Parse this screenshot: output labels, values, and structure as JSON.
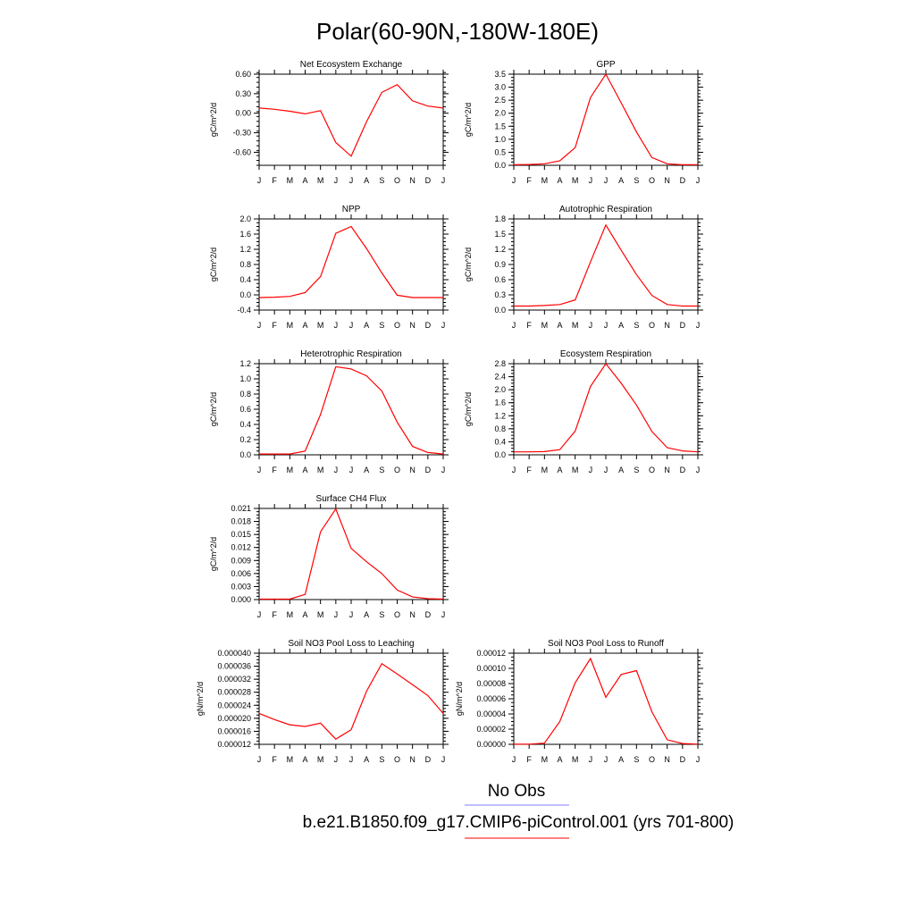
{
  "title": "Polar(60-90N,-180W-180E)",
  "months": [
    "J",
    "F",
    "M",
    "A",
    "M",
    "J",
    "J",
    "A",
    "S",
    "O",
    "N",
    "D",
    "J"
  ],
  "legend": [
    {
      "label": "No Obs",
      "color": "#8080ff"
    },
    {
      "label": "b.e21.B1850.f09_g17.CMIP6-piControl.001 (yrs 701-800)",
      "color": "#ff0000"
    }
  ],
  "chart_data": [
    {
      "type": "line",
      "title": "Net Ecosystem Exchange",
      "ylabel": "gC/m^2/d",
      "ylim": [
        -0.8,
        0.6
      ],
      "yticks": [
        -0.6,
        -0.3,
        0.0,
        0.3,
        0.6
      ],
      "ytick_labels": [
        "-0.60",
        "-0.30",
        "0.00",
        "0.30",
        "0.60"
      ],
      "yminor": 0.075,
      "values": [
        0.08,
        0.06,
        0.03,
        -0.01,
        0.04,
        -0.45,
        -0.66,
        -0.13,
        0.32,
        0.44,
        0.19,
        0.11,
        0.08
      ]
    },
    {
      "type": "line",
      "title": "GPP",
      "ylabel": "gC/m^2/d",
      "ylim": [
        0,
        3.5
      ],
      "yticks": [
        0,
        0.5,
        1.0,
        1.5,
        2.0,
        2.5,
        3.0,
        3.5
      ],
      "ytick_labels": [
        "0.0",
        "0.5",
        "1.0",
        "1.5",
        "2.0",
        "2.5",
        "3.0",
        "3.5"
      ],
      "yminor": 0.125,
      "values": [
        0.02,
        0.03,
        0.06,
        0.17,
        0.68,
        2.6,
        3.5,
        2.4,
        1.28,
        0.3,
        0.06,
        0.02,
        0.02
      ]
    },
    {
      "type": "line",
      "title": "NPP",
      "ylabel": "gC/m^2/d",
      "ylim": [
        -0.4,
        2.0
      ],
      "yticks": [
        -0.4,
        0.0,
        0.4,
        0.8,
        1.2,
        1.6,
        2.0
      ],
      "ytick_labels": [
        "-0.4",
        "0.0",
        "0.4",
        "0.8",
        "1.2",
        "1.6",
        "2.0"
      ],
      "yminor": 0.1,
      "values": [
        -0.07,
        -0.06,
        -0.04,
        0.06,
        0.48,
        1.62,
        1.8,
        1.22,
        0.58,
        -0.01,
        -0.07,
        -0.07,
        -0.07
      ]
    },
    {
      "type": "line",
      "title": "Autotrophic Respiration",
      "ylabel": "gC/m^2/d",
      "ylim": [
        0,
        1.8
      ],
      "yticks": [
        0,
        0.3,
        0.6,
        0.9,
        1.2,
        1.5,
        1.8
      ],
      "ytick_labels": [
        "0.0",
        "0.3",
        "0.6",
        "0.9",
        "1.2",
        "1.5",
        "1.8"
      ],
      "yminor": 0.075,
      "values": [
        0.08,
        0.08,
        0.09,
        0.11,
        0.2,
        0.95,
        1.68,
        1.18,
        0.7,
        0.29,
        0.11,
        0.08,
        0.08
      ]
    },
    {
      "type": "line",
      "title": "Heterotrophic Respiration",
      "ylabel": "gC/m^2/d",
      "ylim": [
        0,
        1.2
      ],
      "yticks": [
        0,
        0.2,
        0.4,
        0.6,
        0.8,
        1.0,
        1.2
      ],
      "ytick_labels": [
        "0.0",
        "0.2",
        "0.4",
        "0.6",
        "0.8",
        "1.0",
        "1.2"
      ],
      "yminor": 0.05,
      "values": [
        0.01,
        0.01,
        0.01,
        0.05,
        0.53,
        1.16,
        1.13,
        1.04,
        0.84,
        0.43,
        0.11,
        0.03,
        0.01
      ]
    },
    {
      "type": "line",
      "title": "Ecosystem Respiration",
      "ylabel": "gC/m^2/d",
      "ylim": [
        0,
        2.8
      ],
      "yticks": [
        0,
        0.4,
        0.8,
        1.2,
        1.6,
        2.0,
        2.4,
        2.8
      ],
      "ytick_labels": [
        "0.0",
        "0.4",
        "0.8",
        "1.2",
        "1.6",
        "2.0",
        "2.4",
        "2.8"
      ],
      "yminor": 0.1,
      "values": [
        0.09,
        0.09,
        0.1,
        0.16,
        0.73,
        2.1,
        2.8,
        2.2,
        1.53,
        0.72,
        0.22,
        0.12,
        0.09
      ]
    },
    {
      "type": "line",
      "title": "Surface CH4 Flux",
      "ylabel": "gC/m^2/d",
      "ylim": [
        0,
        0.021
      ],
      "yticks": [
        0,
        0.003,
        0.006,
        0.009,
        0.012,
        0.015,
        0.018,
        0.021
      ],
      "ytick_labels": [
        "0.000",
        "0.003",
        "0.006",
        "0.009",
        "0.012",
        "0.015",
        "0.018",
        "0.021"
      ],
      "yminor": 0.00075,
      "values": [
        0.0001,
        0.0001,
        0.0001,
        0.0012,
        0.0156,
        0.0209,
        0.0118,
        0.0087,
        0.006,
        0.0022,
        0.0006,
        0.0002,
        0.0001
      ]
    },
    {
      "type": "line",
      "title": "Soil NO3 Pool Loss to Leaching",
      "ylabel": "gN/m^2/d",
      "ylim": [
        1.2e-05,
        4e-05
      ],
      "yticks": [
        1.2e-05,
        1.6e-05,
        2e-05,
        2.4e-05,
        2.8e-05,
        3.2e-05,
        3.6e-05,
        4e-05
      ],
      "ytick_labels": [
        "0.000012",
        "0.000016",
        "0.000020",
        "0.000024",
        "0.000028",
        "0.000032",
        "0.000036",
        "0.000040"
      ],
      "yminor": 1e-06,
      "values": [
        2.15e-05,
        1.96e-05,
        1.8e-05,
        1.75e-05,
        1.85e-05,
        1.36e-05,
        1.65e-05,
        2.83e-05,
        3.68e-05,
        3.36e-05,
        3.03e-05,
        2.7e-05,
        2.15e-05
      ]
    },
    {
      "type": "line",
      "title": "Soil NO3 Pool Loss to Runoff",
      "ylabel": "gN/m^2/d",
      "ylim": [
        0,
        0.00012
      ],
      "yticks": [
        0,
        2e-05,
        4e-05,
        6e-05,
        8e-05,
        0.0001,
        0.00012
      ],
      "ytick_labels": [
        "0.00000",
        "0.00002",
        "0.00004",
        "0.00006",
        "0.00008",
        "0.00010",
        "0.00012"
      ],
      "yminor": 5e-06,
      "values": [
        2e-07,
        2e-07,
        1.5e-06,
        3e-05,
        8.1e-05,
        0.000113,
        6.2e-05,
        9.2e-05,
        9.7e-05,
        4.3e-05,
        6e-06,
        1e-06,
        2e-07
      ]
    }
  ]
}
